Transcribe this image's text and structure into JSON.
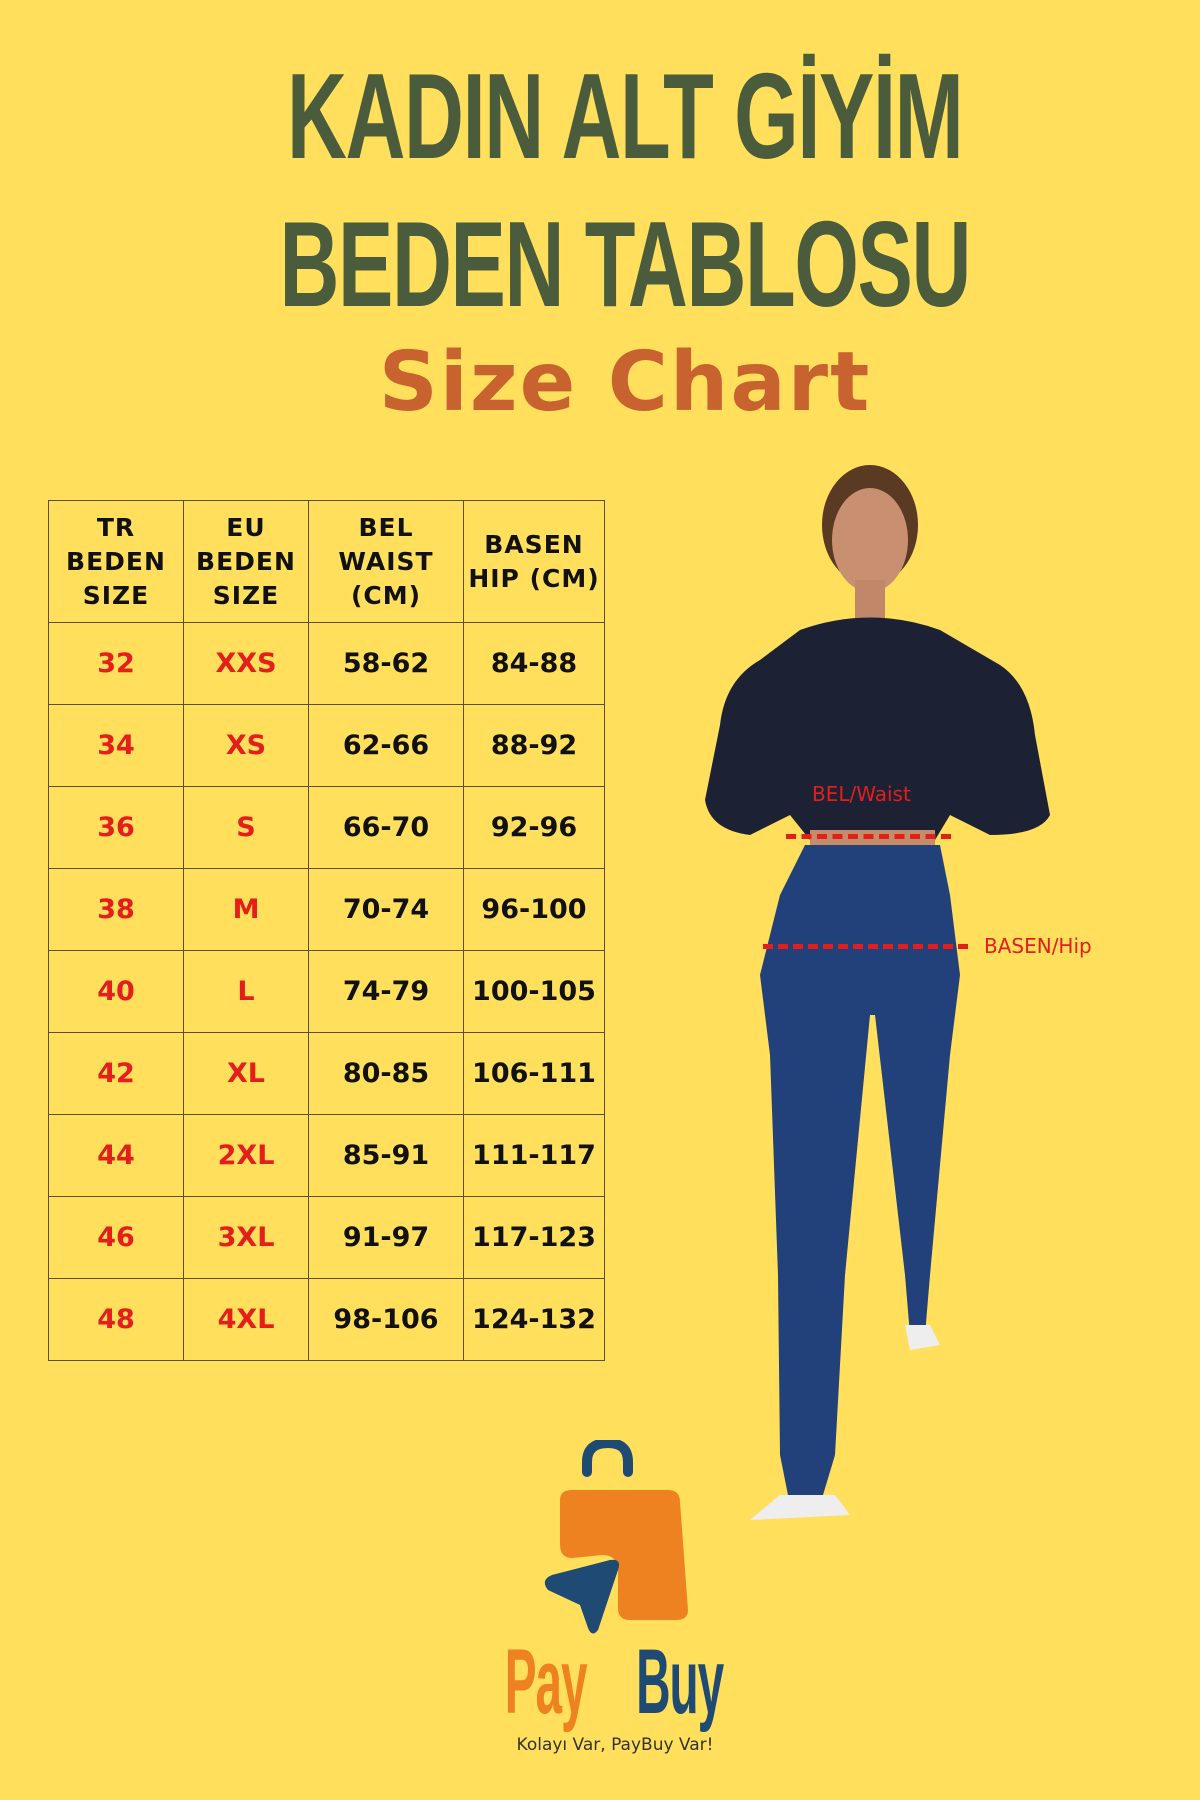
{
  "title_line1": "KADIN ALT GİYİM",
  "title_line2": "BEDEN TABLOSU",
  "subtitle": "Size Chart",
  "table": {
    "headers": [
      [
        "TR",
        "BEDEN",
        "SIZE"
      ],
      [
        "EU",
        "BEDEN",
        "SIZE"
      ],
      [
        "BEL",
        "WAIST",
        "(CM)"
      ],
      [
        "BASEN",
        "HIP (CM)"
      ]
    ],
    "rows": [
      [
        "32",
        "XXS",
        "58-62",
        "84-88"
      ],
      [
        "34",
        "XS",
        "62-66",
        "88-92"
      ],
      [
        "36",
        "S",
        "66-70",
        "92-96"
      ],
      [
        "38",
        "M",
        "70-74",
        "96-100"
      ],
      [
        "40",
        "L",
        "74-79",
        "100-105"
      ],
      [
        "42",
        "XL",
        "80-85",
        "106-111"
      ],
      [
        "44",
        "2XL",
        "85-91",
        "111-117"
      ],
      [
        "46",
        "3XL",
        "91-97",
        "117-123"
      ],
      [
        "48",
        "4XL",
        "98-106",
        "124-132"
      ]
    ]
  },
  "labels": {
    "waist": "BEL/Waist",
    "hip": "BASEN/Hip"
  },
  "brand": {
    "pay": "Pay",
    "buy": "Buy",
    "tagline": "Kolayı Var, PayBuy Var!"
  },
  "colors": {
    "background": "#ffdf5c",
    "title": "#4a5c3c",
    "subtitle": "#c8622e",
    "size_red": "#e41d1d",
    "brand_orange": "#ef8220",
    "brand_blue": "#1f4a73"
  }
}
